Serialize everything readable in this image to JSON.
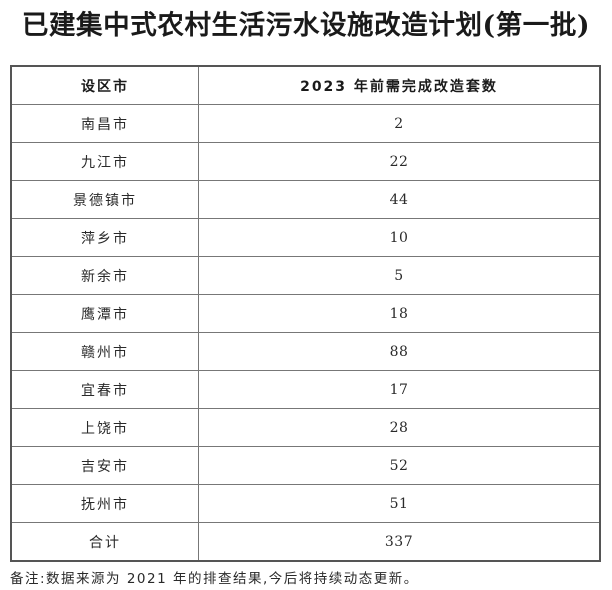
{
  "title": "已建集中式农村生活污水设施改造计划(第一批)",
  "table": {
    "headers": [
      "设区市",
      "2023 年前需完成改造套数"
    ],
    "rows": [
      {
        "city": "南昌市",
        "count": "2"
      },
      {
        "city": "九江市",
        "count": "22"
      },
      {
        "city": "景德镇市",
        "count": "44"
      },
      {
        "city": "萍乡市",
        "count": "10"
      },
      {
        "city": "新余市",
        "count": "5"
      },
      {
        "city": "鹰潭市",
        "count": "18"
      },
      {
        "city": "赣州市",
        "count": "88"
      },
      {
        "city": "宜春市",
        "count": "17"
      },
      {
        "city": "上饶市",
        "count": "28"
      },
      {
        "city": "吉安市",
        "count": "52"
      },
      {
        "city": "抚州市",
        "count": "51"
      }
    ],
    "total": {
      "label": "合计",
      "count": "337"
    }
  },
  "note": "备注:数据来源为 2021 年的排查结果,今后将持续动态更新。"
}
